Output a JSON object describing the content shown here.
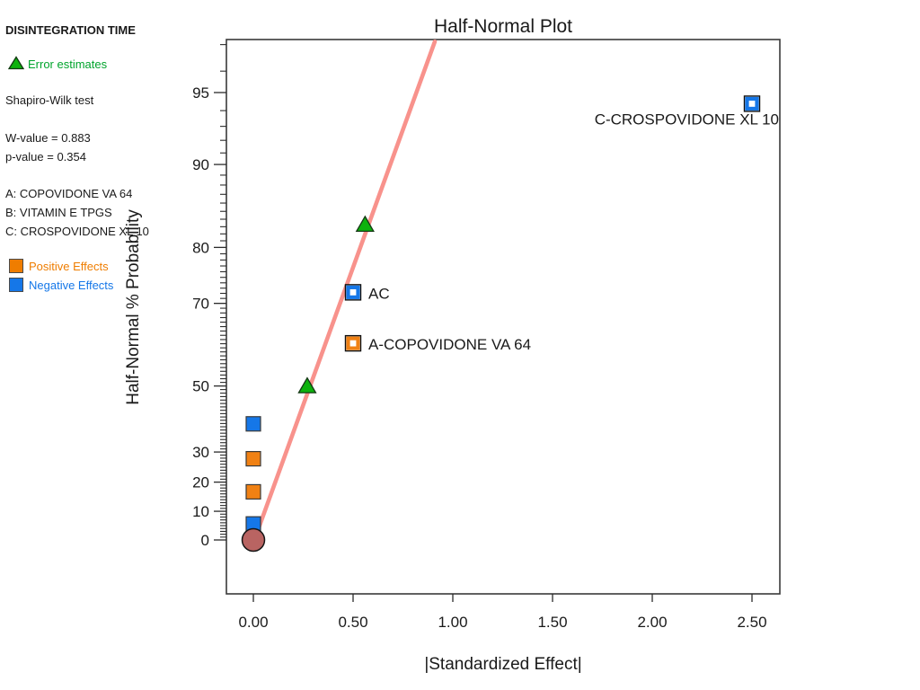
{
  "panel": {
    "title": "DISINTEGRATION TIME",
    "error_estimates_label": "Error estimates",
    "error_color": "#00a42c",
    "error_triangle_fill": "#0db20d",
    "shapiro_heading": "Shapiro-Wilk test",
    "w_value": "W-value = 0.883",
    "p_value": "p-value = 0.354",
    "factors": [
      "A: COPOVIDONE VA 64",
      "B: VITAMIN E TPGS",
      "C: CROSPOVIDONE XL 10"
    ],
    "positive_label": "Positive Effects",
    "negative_label": "Negative Effects",
    "positive_color": "#ef7d00",
    "negative_color": "#1577e8"
  },
  "chart_data": {
    "type": "scatter",
    "title": "Half-Normal Plot",
    "xlabel": "|Standardized Effect|",
    "ylabel": "Half-Normal % Probability",
    "grid": false,
    "x_axis": {
      "min": -0.14,
      "max": 2.64,
      "tick_values": [
        0,
        0.5,
        1.0,
        1.5,
        2.0,
        2.5
      ],
      "tick_labels": [
        "0.00",
        "0.50",
        "1.00",
        "1.50",
        "2.00",
        "2.50"
      ]
    },
    "y_axis": {
      "scale": "half-normal-probability",
      "major_ticks": [
        0,
        10,
        20,
        30,
        50,
        70,
        80,
        90,
        95
      ],
      "minor_tick_step": 1,
      "minor_tick_min": 1,
      "minor_tick_max": 97
    },
    "fit_line": {
      "color": "#f8928c",
      "x_start": 0.005,
      "p_start": 0.0,
      "x_end": 0.91,
      "p_end": 97.1
    },
    "series": [
      {
        "name": "Negative Effects",
        "marker": "square-filled",
        "color": "#1577e8",
        "points": [
          {
            "x": 0.0,
            "p": 5.6
          },
          {
            "x": 0.0,
            "p": 38.9
          }
        ]
      },
      {
        "name": "Positive Effects",
        "marker": "square-filled",
        "color": "#f08114",
        "points": [
          {
            "x": 0.0,
            "p": 16.7
          },
          {
            "x": 0.0,
            "p": 27.8
          }
        ]
      },
      {
        "name": "Error estimates",
        "marker": "triangle",
        "color": "#0db20d",
        "points": [
          {
            "x": 0.27,
            "p": 50.0
          },
          {
            "x": 0.56,
            "p": 83.3
          }
        ]
      },
      {
        "name": "Positive Effects (labeled)",
        "marker": "square-open",
        "color": "#f08114",
        "points": [
          {
            "x": 0.5,
            "p": 61.1,
            "label": "A-COPOVIDONE VA 64",
            "label_side": "right"
          }
        ]
      },
      {
        "name": "Negative Effects (labeled)",
        "marker": "square-open",
        "color": "#1577e8",
        "points": [
          {
            "x": 0.5,
            "p": 72.2,
            "label": "AC",
            "label_side": "right"
          },
          {
            "x": 2.5,
            "p": 94.4,
            "label": "C-CROSPOVIDONE XL 10",
            "label_side": "below-left"
          }
        ]
      },
      {
        "name": "Origin point",
        "marker": "circle",
        "color": "#b96462",
        "points": [
          {
            "x": 0.0,
            "p": 0.0
          }
        ]
      }
    ]
  }
}
